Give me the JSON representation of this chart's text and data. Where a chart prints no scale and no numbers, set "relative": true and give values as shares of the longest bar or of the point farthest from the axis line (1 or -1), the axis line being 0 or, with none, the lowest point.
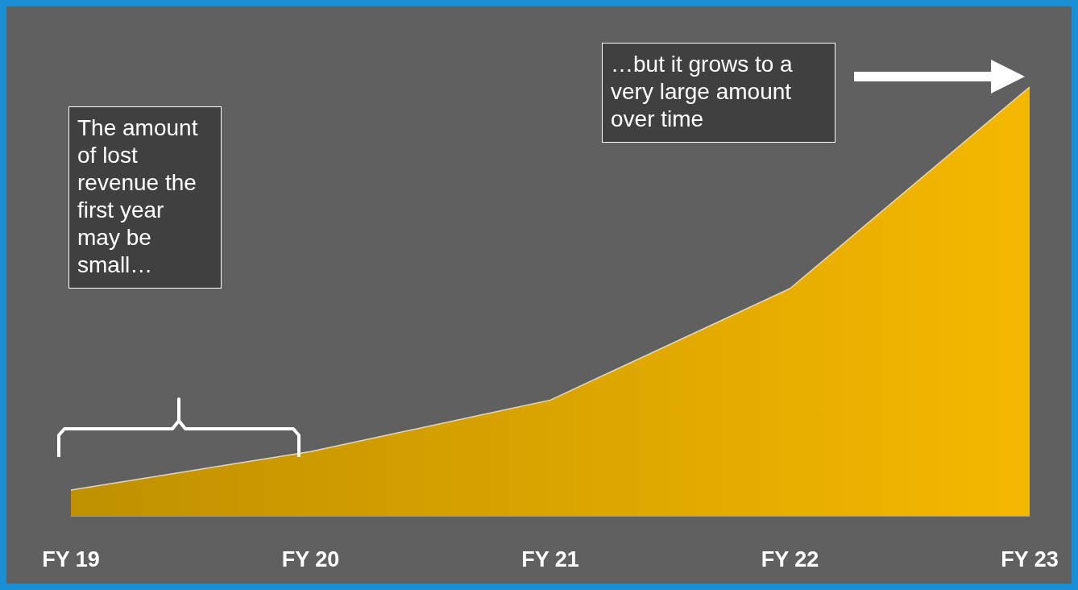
{
  "chart_data": {
    "type": "area",
    "relative": true,
    "categories": [
      "FY 19",
      "FY 20",
      "FY 21",
      "FY 22",
      "FY 23"
    ],
    "series": [
      {
        "color": "#f5b800",
        "values": [
          0.06,
          0.15,
          0.27,
          0.53,
          1
        ]
      }
    ],
    "annotations": [
      "The amount of lost revenue the first year may be small…",
      "…but it grows to a very large amount over time"
    ]
  }
}
